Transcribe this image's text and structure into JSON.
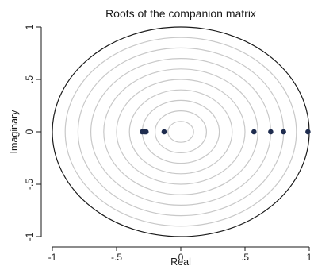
{
  "chart_data": {
    "type": "scatter",
    "title": "Roots of the companion matrix",
    "xlabel": "Real",
    "ylabel": "Imaginary",
    "xlim": [
      -1,
      1
    ],
    "ylim": [
      -1,
      1
    ],
    "x_ticks": [
      {
        "value": -1,
        "label": "-1"
      },
      {
        "value": -0.5,
        "label": "-.5"
      },
      {
        "value": 0,
        "label": "0"
      },
      {
        "value": 0.5,
        "label": ".5"
      },
      {
        "value": 1,
        "label": "1"
      }
    ],
    "y_ticks": [
      {
        "value": -1,
        "label": "-1"
      },
      {
        "value": -0.5,
        "label": "-.5"
      },
      {
        "value": 0,
        "label": "0"
      },
      {
        "value": 0.5,
        "label": ".5"
      },
      {
        "value": 1,
        "label": "1"
      }
    ],
    "unit_circle": true,
    "reference_circle_radii": [
      0.1,
      0.2,
      0.3,
      0.4,
      0.5,
      0.6,
      0.7,
      0.8,
      0.9
    ],
    "points": [
      {
        "x": -0.3,
        "y": 0
      },
      {
        "x": -0.28,
        "y": 0
      },
      {
        "x": -0.27,
        "y": 0
      },
      {
        "x": -0.13,
        "y": 0
      },
      {
        "x": 0.57,
        "y": 0
      },
      {
        "x": 0.7,
        "y": 0
      },
      {
        "x": 0.8,
        "y": 0
      },
      {
        "x": 0.99,
        "y": 0
      }
    ],
    "grid": false,
    "colors": {
      "point": "#1f2d4f",
      "unit_circle": "#1a1a1a",
      "reference_circle": "#c8c8c8"
    }
  }
}
